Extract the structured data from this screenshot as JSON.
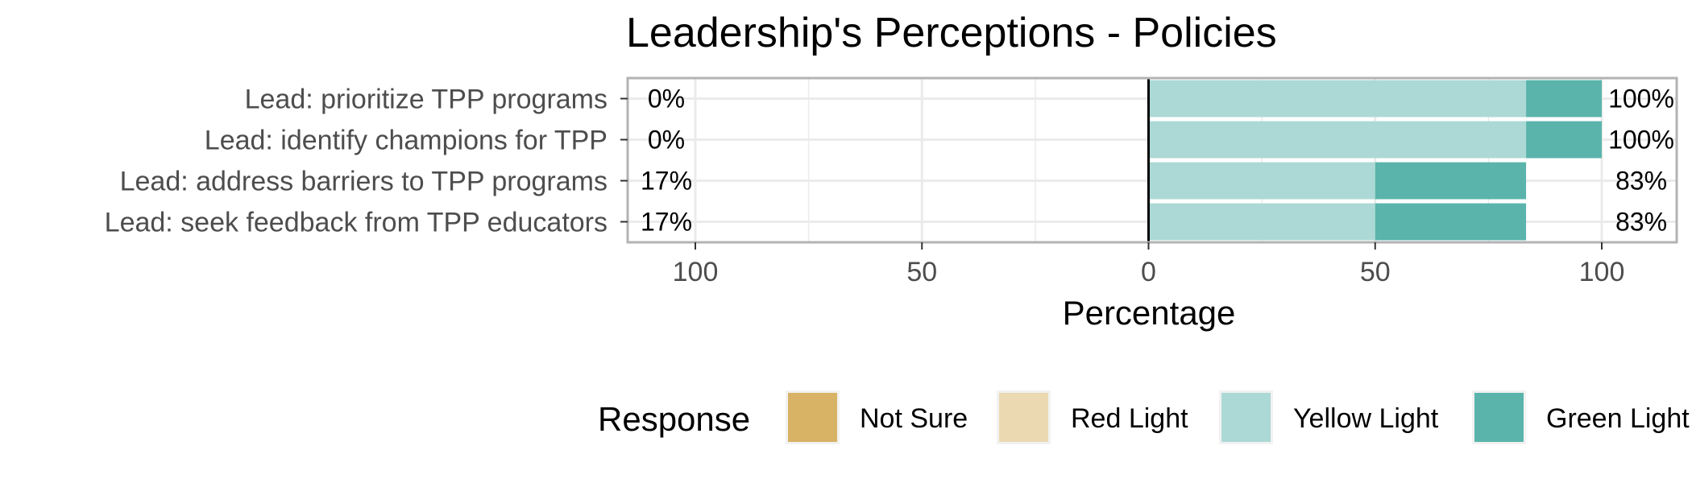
{
  "chart_data": {
    "type": "bar",
    "orientation": "horizontal",
    "stacking": "diverging",
    "title": "Leadership's Perceptions - Policies",
    "xlabel": "Percentage",
    "ylabel": "",
    "xlim": [
      -100,
      100
    ],
    "xticks": [
      -100,
      -50,
      0,
      50,
      100
    ],
    "xtick_labels": [
      "100",
      "50",
      "0",
      "50",
      "100"
    ],
    "grid": true,
    "legend_position": "bottom",
    "categories": [
      "Lead: prioritize TPP programs",
      "Lead: identify champions for TPP",
      "Lead: address barriers to TPP programs",
      "Lead: seek feedback from TPP educators"
    ],
    "series": [
      {
        "name": "Not Sure",
        "side": "negative",
        "color": "#d8b365",
        "values": [
          0,
          0,
          0,
          0
        ]
      },
      {
        "name": "Red Light",
        "side": "negative",
        "color": "#ebd9b2",
        "values": [
          0,
          0,
          16.7,
          16.7
        ]
      },
      {
        "name": "Yellow Light",
        "side": "positive",
        "color": "#acd9d5",
        "values": [
          83.3,
          83.3,
          50,
          50
        ]
      },
      {
        "name": "Green Light",
        "side": "positive",
        "color": "#5ab4ac",
        "values": [
          16.7,
          16.7,
          33.3,
          33.3
        ]
      }
    ],
    "left_labels": [
      "0%",
      "0%",
      "17%",
      "17%"
    ],
    "right_labels": [
      "100%",
      "100%",
      "83%",
      "83%"
    ],
    "legend_title": "Response"
  }
}
